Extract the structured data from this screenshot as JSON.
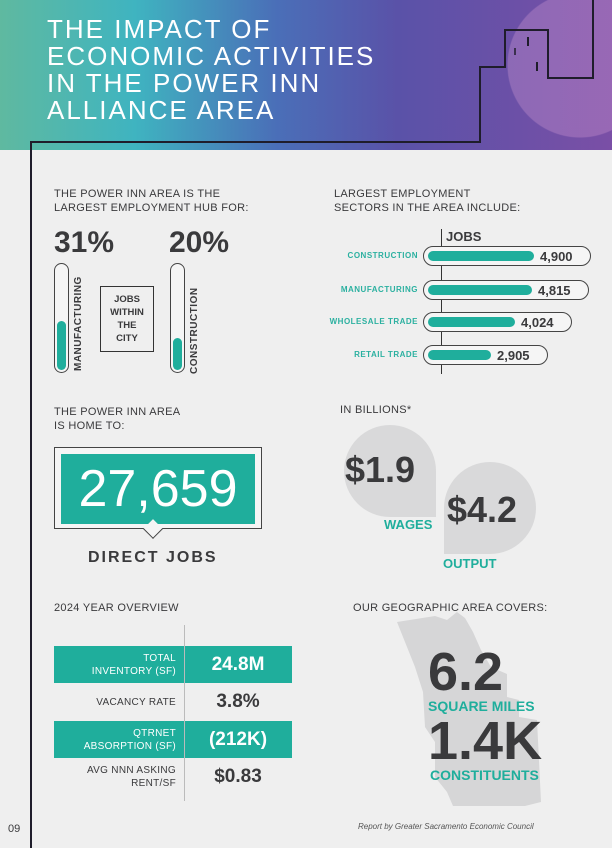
{
  "header": {
    "title_lines": [
      "THE IMPACT OF",
      "ECONOMIC ACTIVITIES",
      "IN THE POWER INN",
      "ALLIANCE AREA"
    ]
  },
  "hub": {
    "heading_lines": [
      "THE POWER INN AREA IS THE",
      "LARGEST EMPLOYMENT HUB FOR:"
    ],
    "manufacturing": {
      "pct": "31%",
      "label": "MANUFACTURING",
      "fill": 0.45
    },
    "construction": {
      "pct": "20%",
      "label": "CONSTRUCTION",
      "fill": 0.3
    },
    "center_label_lines": [
      "JOBS",
      "WITHIN",
      "THE",
      "CITY"
    ]
  },
  "chart_data": {
    "type": "bar",
    "title": "LARGEST EMPLOYMENT SECTORS IN THE AREA INCLUDE:",
    "title_lines": [
      "LARGEST EMPLOYMENT",
      "SECTORS IN THE AREA INCLUDE:"
    ],
    "axis_label": "JOBS",
    "categories": [
      "CONSTRUCTION",
      "MANUFACTURING",
      "WHOLESALE TRADE",
      "RETAIL TRADE"
    ],
    "values": [
      4900,
      4815,
      4024,
      2905
    ],
    "value_labels": [
      "4,900",
      "4,815",
      "4,024",
      "2,905"
    ]
  },
  "home": {
    "heading_lines": [
      "THE POWER INN AREA",
      "IS HOME TO:"
    ],
    "number": "27,659",
    "label": "DIRECT JOBS"
  },
  "billions": {
    "heading": "IN BILLIONS*",
    "wages": {
      "value": "$1.9",
      "label": "WAGES"
    },
    "output": {
      "value": "$4.2",
      "label": "OUTPUT"
    }
  },
  "overview": {
    "heading": "2024 YEAR OVERVIEW",
    "rows": [
      {
        "label_lines": [
          "TOTAL",
          "INVENTORY (SF)"
        ],
        "value": "24.8M"
      },
      {
        "label_lines": [
          "VACANCY RATE"
        ],
        "value": "3.8%"
      },
      {
        "label_lines": [
          "QTRNET",
          "ABSORPTION (SF)"
        ],
        "value": "(212K)"
      },
      {
        "label_lines": [
          "AVG NNN ASKING",
          "RENT/SF"
        ],
        "value": "$0.83"
      }
    ]
  },
  "geo": {
    "heading": "OUR GEOGRAPHIC AREA COVERS:",
    "area": {
      "value": "6.2",
      "label": "SQUARE MILES"
    },
    "constituents": {
      "value": "1.4K",
      "label": "CONSTITUENTS"
    }
  },
  "footer": {
    "page": "09",
    "credit": "Report by Greater Sacramento Economic Council"
  },
  "colors": {
    "teal": "#1fae9c",
    "dark": "#3a3a3c"
  }
}
